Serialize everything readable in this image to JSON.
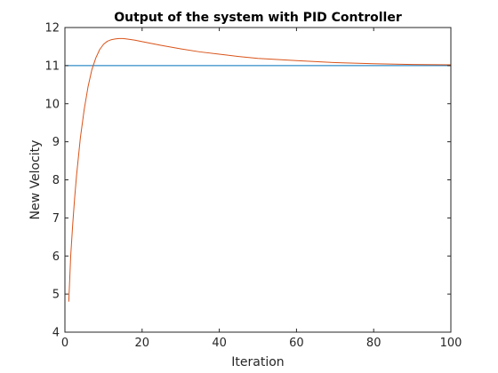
{
  "chart_data": {
    "type": "line",
    "title": "Output of the system with PID Controller",
    "xlabel": "Iteration",
    "ylabel": "New Velocity",
    "xlim": [
      0,
      100
    ],
    "ylim": [
      4,
      12
    ],
    "xticks": [
      0,
      20,
      40,
      60,
      80,
      100
    ],
    "yticks": [
      4,
      5,
      6,
      7,
      8,
      9,
      10,
      11,
      12
    ],
    "grid": false,
    "series": [
      {
        "color": "#0072BD",
        "x": [
          0,
          100
        ],
        "y": [
          11,
          11
        ]
      },
      {
        "color": "#D95319",
        "x": [
          1,
          1.5,
          2,
          2.5,
          3,
          4,
          5,
          6,
          7,
          8,
          9,
          10,
          11,
          12,
          13,
          14,
          15,
          16,
          18,
          20,
          25,
          30,
          35,
          40,
          45,
          50,
          60,
          70,
          80,
          90,
          100
        ],
        "y": [
          4.8,
          6.0,
          6.8,
          7.5,
          8.1,
          9.1,
          9.85,
          10.45,
          10.9,
          11.2,
          11.42,
          11.56,
          11.64,
          11.68,
          11.7,
          11.71,
          11.71,
          11.7,
          11.67,
          11.63,
          11.53,
          11.44,
          11.36,
          11.3,
          11.24,
          11.19,
          11.13,
          11.08,
          11.05,
          11.03,
          11.02
        ]
      }
    ]
  }
}
